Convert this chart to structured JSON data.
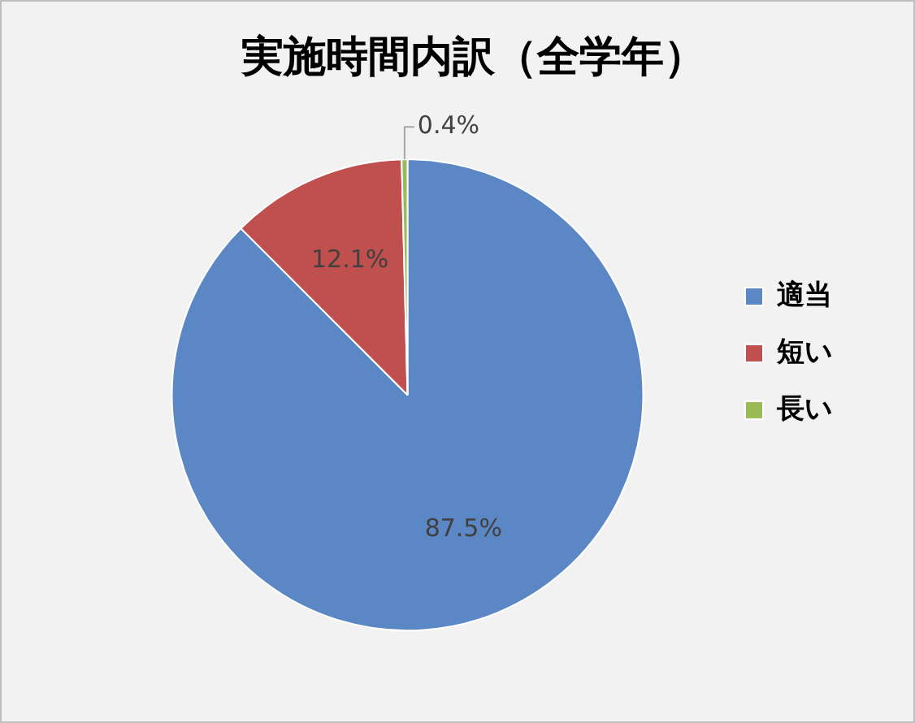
{
  "chart_data": {
    "type": "pie",
    "title": "実施時間内訳（全学年）",
    "categories": [
      "適当",
      "短い",
      "長い"
    ],
    "values": [
      87.5,
      12.1,
      0.4
    ],
    "colors": [
      "#5b87c5",
      "#c0504d",
      "#9bbb59"
    ],
    "data_labels": true,
    "value_labels": [
      "87.5%",
      "12.1%",
      "0.4%"
    ],
    "legend": "right"
  }
}
